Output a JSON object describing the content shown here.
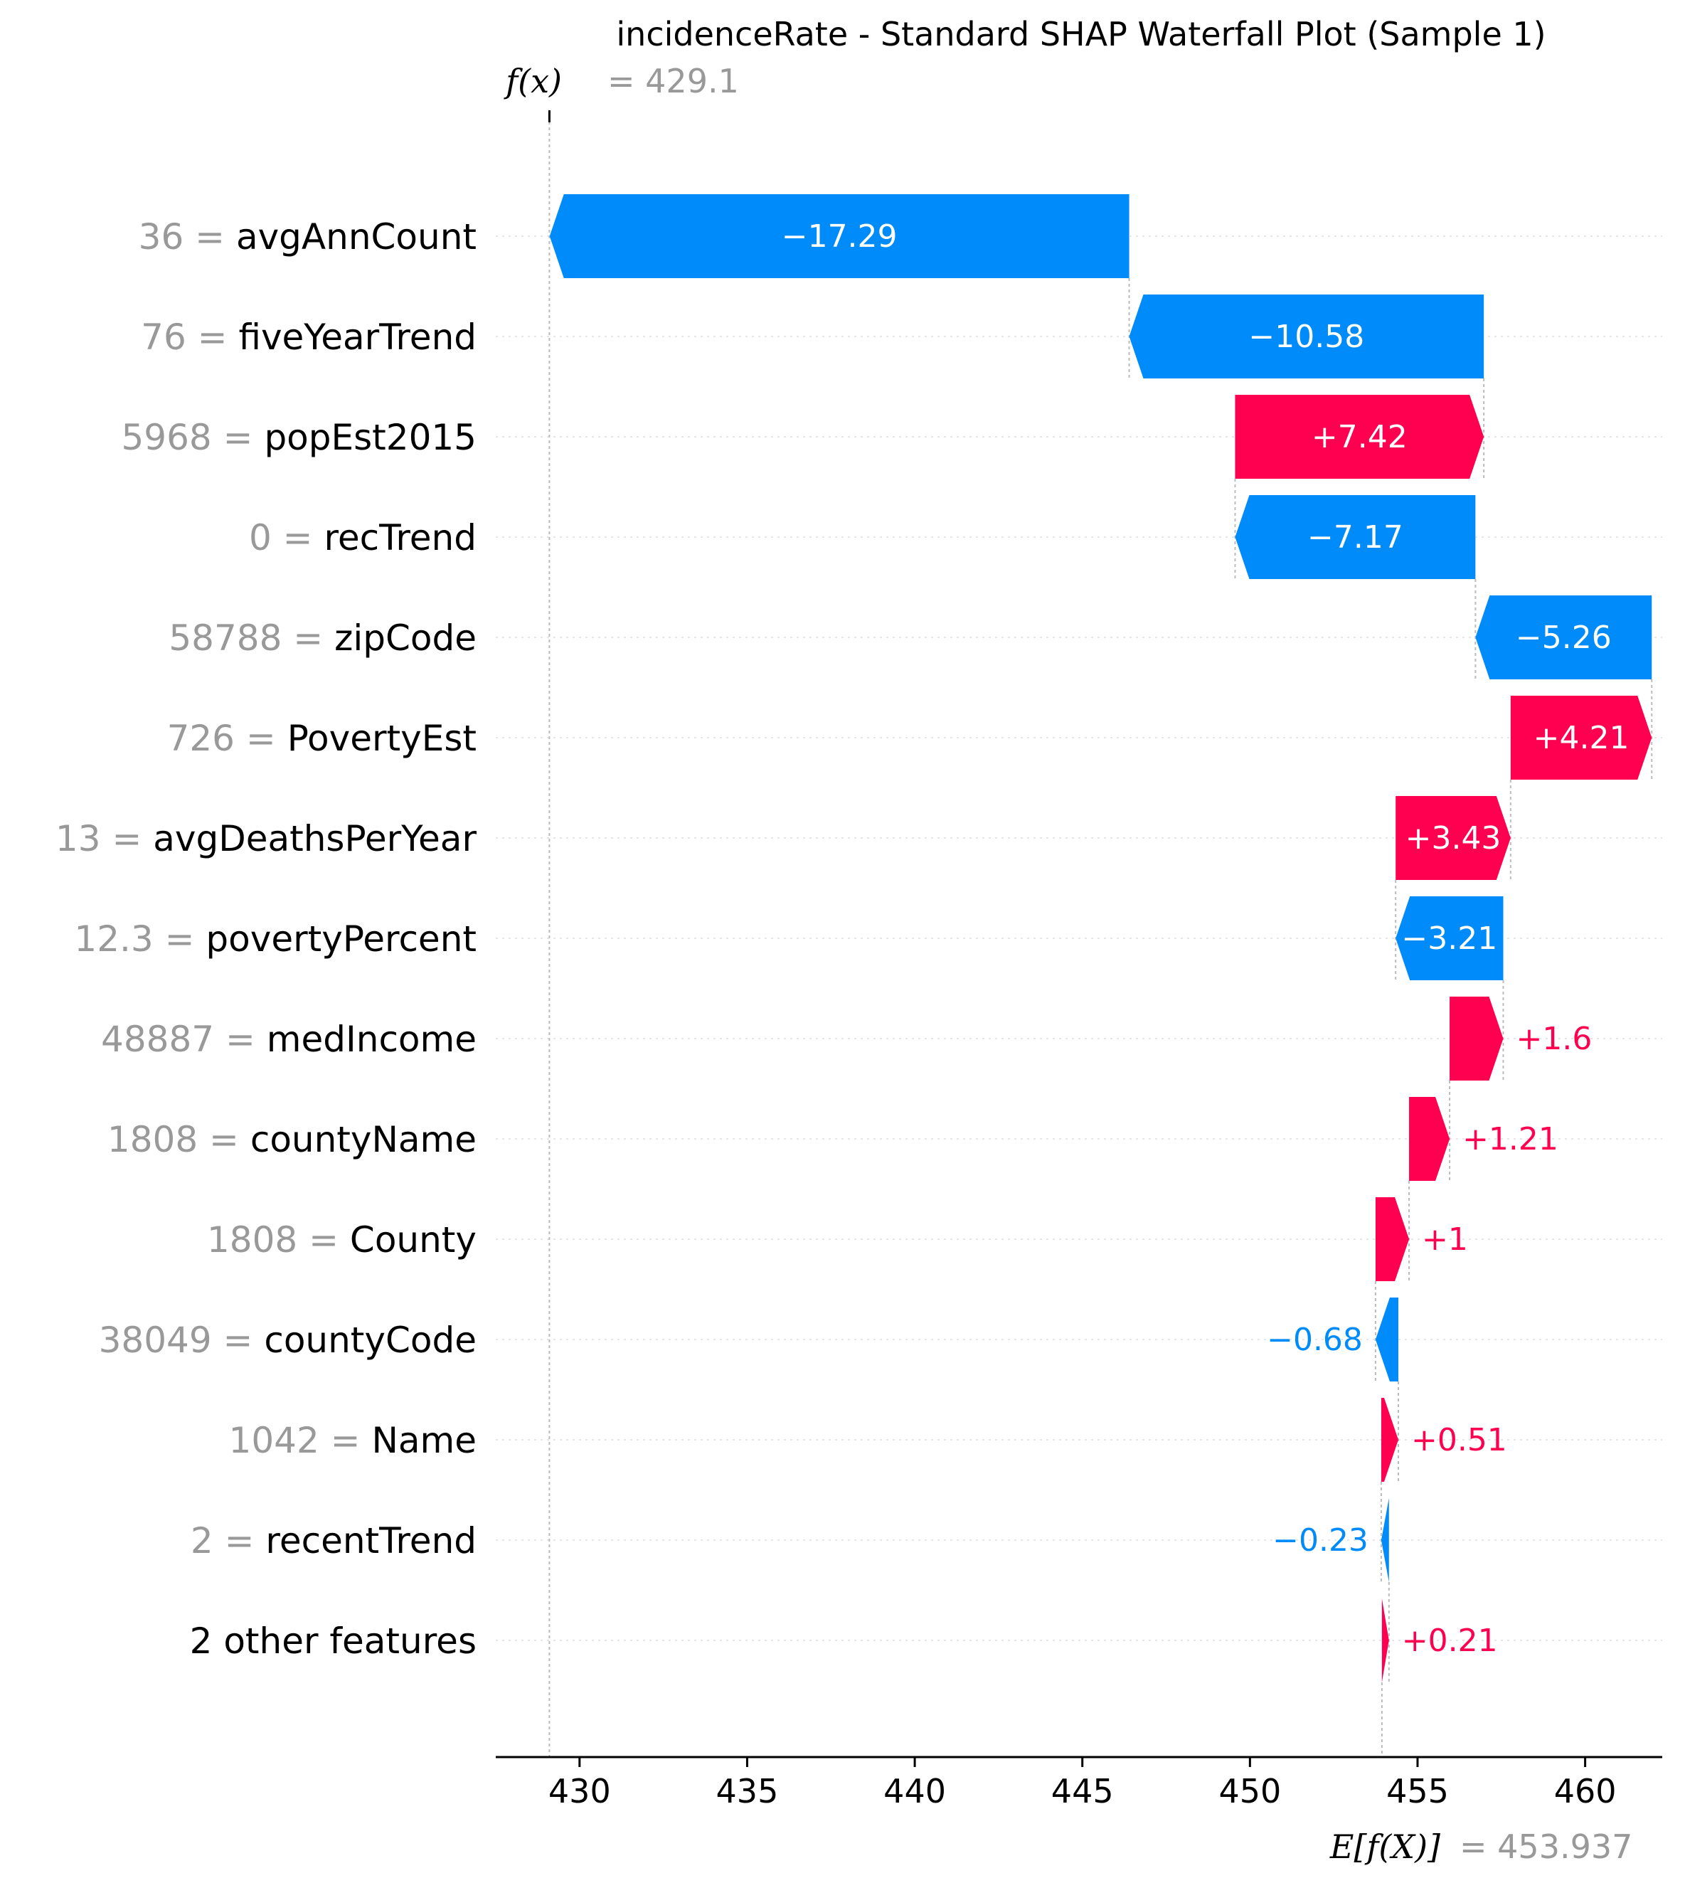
{
  "chart_data": {
    "type": "waterfall",
    "title": "incidenceRate - Standard SHAP Waterfall Plot (Sample 1)",
    "fx": {
      "label": "f(x)",
      "value_text": "= 429.1",
      "value": 429.1
    },
    "base": {
      "label": "E[f(X)]",
      "value_text": "= 453.937",
      "value": 453.937
    },
    "xlim": [
      427.5,
      462.3
    ],
    "xticks": [
      430,
      435,
      440,
      445,
      450,
      455,
      460
    ],
    "features": [
      {
        "value": "36 =",
        "name": "avgAnnCount",
        "shap": -17.29,
        "label": "−17.29"
      },
      {
        "value": "76 =",
        "name": "fiveYearTrend",
        "shap": -10.58,
        "label": "−10.58"
      },
      {
        "value": "5968 =",
        "name": "popEst2015",
        "shap": 7.42,
        "label": "+7.42"
      },
      {
        "value": "0 =",
        "name": "recTrend",
        "shap": -7.17,
        "label": "−7.17"
      },
      {
        "value": "58788 =",
        "name": "zipCode",
        "shap": -5.26,
        "label": "−5.26"
      },
      {
        "value": "726 =",
        "name": "PovertyEst",
        "shap": 4.21,
        "label": "+4.21"
      },
      {
        "value": "13 =",
        "name": "avgDeathsPerYear",
        "shap": 3.43,
        "label": "+3.43"
      },
      {
        "value": "12.3 =",
        "name": "povertyPercent",
        "shap": -3.21,
        "label": "−3.21"
      },
      {
        "value": "48887 =",
        "name": "medIncome",
        "shap": 1.6,
        "label": "+1.6"
      },
      {
        "value": "1808 =",
        "name": "countyName",
        "shap": 1.21,
        "label": "+1.21"
      },
      {
        "value": "1808 =",
        "name": "County",
        "shap": 1.0,
        "label": "+1"
      },
      {
        "value": "38049 =",
        "name": "countyCode",
        "shap": -0.68,
        "label": "−0.68"
      },
      {
        "value": "1042 =",
        "name": "Name",
        "shap": 0.51,
        "label": "+0.51"
      },
      {
        "value": "2 =",
        "name": "recentTrend",
        "shap": -0.23,
        "label": "−0.23"
      },
      {
        "value": "",
        "name": "2 other features",
        "shap": 0.21,
        "label": "+0.21"
      }
    ],
    "colors": {
      "positive": "#ff0051",
      "negative": "#008bfb",
      "muted": "#999999",
      "text": "#000000",
      "bar_text": "#ffffff"
    }
  }
}
